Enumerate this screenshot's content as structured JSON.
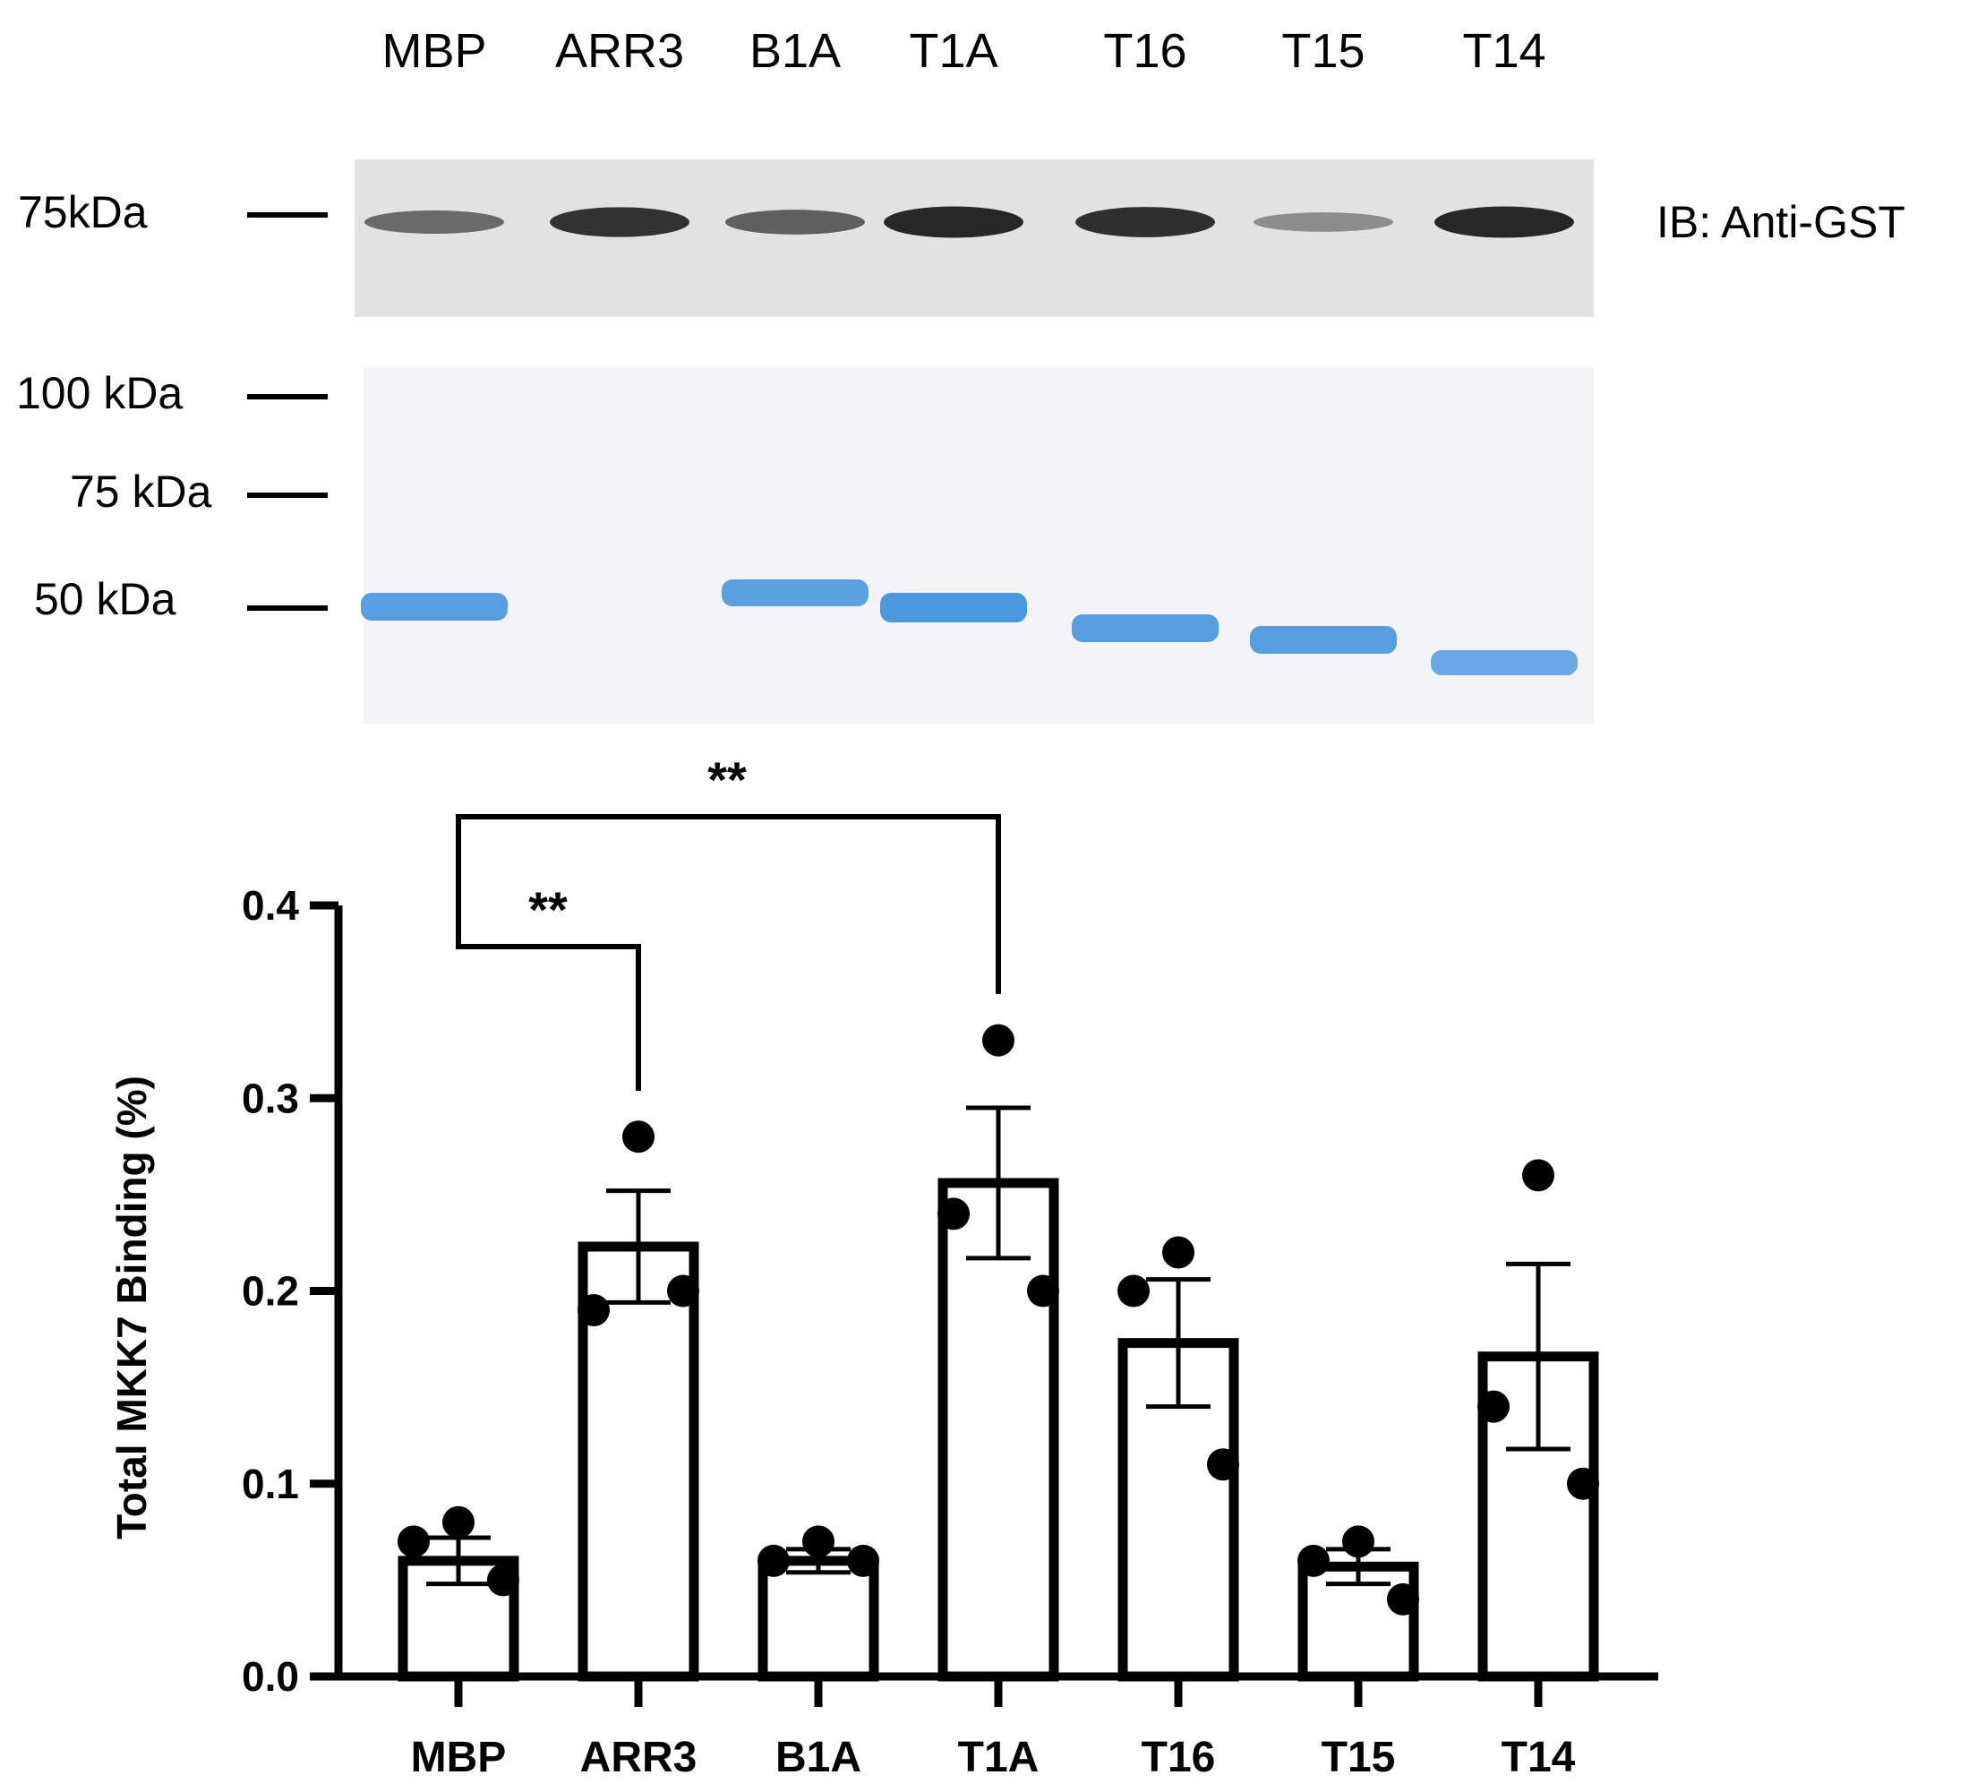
{
  "lane_labels": [
    "MBP",
    "ARR3",
    "B1A",
    "T1A",
    "T16",
    "T15",
    "T14"
  ],
  "blot": {
    "marker": "75kDa",
    "antibody_label": "IB: Anti-GST",
    "band_intensity": [
      0.55,
      0.88,
      0.62,
      0.95,
      0.9,
      0.35,
      0.95
    ]
  },
  "gel": {
    "markers": [
      "100 kDa",
      "75 kDa",
      "50 kDa"
    ],
    "stain_color": "#3d8fdc",
    "band_intensity": [
      0.85,
      0.0,
      0.8,
      0.95,
      0.85,
      0.85,
      0.7
    ]
  },
  "chart_data": {
    "type": "bar",
    "categories": [
      "MBP",
      "ARR3",
      "B1A",
      "T1A",
      "T16",
      "T15",
      "T14"
    ],
    "values": [
      0.06,
      0.223,
      0.06,
      0.256,
      0.173,
      0.057,
      0.166
    ],
    "sem": [
      0.012,
      0.029,
      0.006,
      0.039,
      0.033,
      0.009,
      0.048
    ],
    "points": [
      [
        0.08,
        0.07,
        0.05
      ],
      [
        0.28,
        0.19,
        0.2
      ],
      [
        0.07,
        0.06,
        0.06
      ],
      [
        0.33,
        0.24,
        0.2
      ],
      [
        0.22,
        0.2,
        0.11
      ],
      [
        0.07,
        0.06,
        0.04
      ],
      [
        0.26,
        0.14,
        0.1
      ]
    ],
    "ylabel": "Total MKK7 Binding (%)",
    "xlabel": "",
    "ylim": [
      0,
      0.4
    ],
    "yticks": [
      "0.0",
      "0.1",
      "0.2",
      "0.3",
      "0.4"
    ],
    "significance": [
      {
        "from": "MBP",
        "to": "ARR3",
        "label": "**"
      },
      {
        "from": "MBP",
        "to": "T1A",
        "label": "**"
      }
    ]
  }
}
